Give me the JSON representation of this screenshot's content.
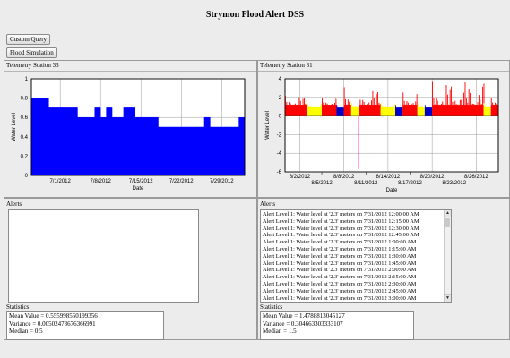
{
  "app": {
    "title": "Strymon Flood Alert DSS"
  },
  "toolbar": {
    "custom_query_label": "Custom Query",
    "flood_simulation_label": "Flood Simulation"
  },
  "left_panel": {
    "header": "Telemetry Station 33",
    "alerts_label": "Alerts",
    "alerts": [],
    "statistics_label": "Statistics",
    "statistics": [
      "Mean Value = 0.555998550199356",
      "Variance = 0.00502473676366991",
      "Median = 0.5"
    ]
  },
  "right_panel": {
    "header": "Telemetry Station 31",
    "alerts_label": "Alerts",
    "alerts": [
      "Alert Level 1: Water level at '2.3' meters on 7/31/2012 12:00:00 AM",
      "Alert Level 1: Water level at '2.3' meters on 7/31/2012 12:15:00 AM",
      "Alert Level 1: Water level at '2.3' meters on 7/31/2012 12:30:00 AM",
      "Alert Level 1: Water level at '2.3' meters on 7/31/2012 12:45:00 AM",
      "Alert Level 1: Water level at '2.3' meters on 7/31/2012 1:00:00 AM",
      "Alert Level 1: Water level at '2.3' meters on 7/31/2012 1:15:00 AM",
      "Alert Level 1: Water level at '2.3' meters on 7/31/2012 1:30:00 AM",
      "Alert Level 1: Water level at '2.3' meters on 7/31/2012 1:45:00 AM",
      "Alert Level 1: Water level at '2.3' meters on 7/31/2012 2:00:00 AM",
      "Alert Level 1: Water level at '2.3' meters on 7/31/2012 2:15:00 AM",
      "Alert Level 1: Water level at '2.3' meters on 7/31/2012 2:30:00 AM",
      "Alert Level 1: Water level at '2.3' meters on 7/31/2012 2:45:00 AM",
      "Alert Level 1: Water level at '2.3' meters on 7/31/2012 3:00:00 AM"
    ],
    "statistics_label": "Statistics",
    "statistics": [
      "Mean Value = 1.4788813045127",
      "Variance = 0.304663303333107",
      "Median = 1.5"
    ]
  },
  "chart_data": [
    {
      "type": "area",
      "xlabel": "Date",
      "ylabel": "Water Level",
      "ylim": [
        0,
        1
      ],
      "yticks": [
        "0",
        "0.2",
        "0.4",
        "0.6",
        "0.8",
        "1"
      ],
      "xticks": [
        "7/1/2012",
        "7/8/2012",
        "7/15/2012",
        "7/22/2012",
        "7/29/2012"
      ],
      "grid": true,
      "color": "#0000ff",
      "series": [
        {
          "values": [
            [
              "6/26/2012",
              0.8
            ],
            [
              "6/29/2012",
              0.8
            ],
            [
              "6/29/2012",
              0.7
            ],
            [
              "7/4/2012",
              0.7
            ],
            [
              "7/4/2012",
              0.6
            ],
            [
              "7/7/2012",
              0.6
            ],
            [
              "7/7/2012",
              0.7
            ],
            [
              "7/8/2012",
              0.7
            ],
            [
              "7/8/2012",
              0.6
            ],
            [
              "7/9/2012",
              0.6
            ],
            [
              "7/9/2012",
              0.7
            ],
            [
              "7/10/2012",
              0.7
            ],
            [
              "7/10/2012",
              0.6
            ],
            [
              "7/12/2012",
              0.6
            ],
            [
              "7/12/2012",
              0.7
            ],
            [
              "7/14/2012",
              0.7
            ],
            [
              "7/14/2012",
              0.6
            ],
            [
              "7/18/2012",
              0.6
            ],
            [
              "7/18/2012",
              0.5
            ],
            [
              "7/26/2012",
              0.5
            ],
            [
              "7/26/2012",
              0.6
            ],
            [
              "7/27/2012",
              0.6
            ],
            [
              "7/27/2012",
              0.5
            ],
            [
              "8/1/2012",
              0.5
            ],
            [
              "8/1/2012",
              0.6
            ],
            [
              "8/2/2012",
              0.6
            ]
          ]
        }
      ]
    },
    {
      "type": "bar",
      "xlabel": "Date",
      "ylabel": "Water Level",
      "ylim": [
        -6,
        4
      ],
      "yticks": [
        "-6",
        "-4",
        "-2",
        "0",
        "2",
        "4"
      ],
      "xticks_upper": [
        "8/2/2012",
        "8/8/2012",
        "8/14/2012",
        "8/20/2012",
        "8/26/2012"
      ],
      "xticks_lower": [
        "8/5/2012",
        "8/11/2012",
        "8/17/2012",
        "8/23/2012"
      ],
      "grid": true,
      "level_colors": {
        "high": "#ff0000",
        "medium": "#ffff00",
        "low": "#0000cc",
        "negative": "#ff3399"
      },
      "segments": [
        {
          "start": "7/31/2012",
          "end": "8/3/2012",
          "level": "high",
          "min": 1.2,
          "max": 2.2
        },
        {
          "start": "8/3/2012",
          "end": "8/5/2012",
          "level": "medium",
          "min": 1.0,
          "max": 1.4
        },
        {
          "start": "8/5/2012",
          "end": "8/7/2012",
          "level": "high",
          "min": 1.2,
          "max": 2.0
        },
        {
          "start": "8/7/2012",
          "end": "8/8/2012",
          "level": "low",
          "min": 0.9,
          "max": 1.2
        },
        {
          "start": "8/8/2012",
          "end": "8/9/2012",
          "level": "high",
          "min": 1.2,
          "max": 3.2
        },
        {
          "start": "8/9/2012",
          "end": "8/10/2012",
          "level": "medium",
          "min": 1.0,
          "max": 1.4
        },
        {
          "start": "8/10/2012",
          "end": "8/13/2012",
          "level": "high",
          "min": 1.2,
          "max": 3.0
        },
        {
          "start": "8/13/2012",
          "end": "8/15/2012",
          "level": "medium",
          "min": 1.0,
          "max": 1.4
        },
        {
          "start": "8/15/2012",
          "end": "8/16/2012",
          "level": "low",
          "min": 0.9,
          "max": 1.2
        },
        {
          "start": "8/16/2012",
          "end": "8/18/2012",
          "level": "high",
          "min": 1.2,
          "max": 2.6
        },
        {
          "start": "8/18/2012",
          "end": "8/19/2012",
          "level": "medium",
          "min": 1.0,
          "max": 1.4
        },
        {
          "start": "8/19/2012",
          "end": "8/20/2012",
          "level": "low",
          "min": 0.9,
          "max": 1.2
        },
        {
          "start": "8/20/2012",
          "end": "8/27/2012",
          "level": "high",
          "min": 1.2,
          "max": 3.8
        },
        {
          "start": "8/27/2012",
          "end": "8/28/2012",
          "level": "medium",
          "min": 1.0,
          "max": 1.4
        },
        {
          "start": "8/28/2012",
          "end": "8/29/2012",
          "level": "high",
          "min": 1.2,
          "max": 2.0
        }
      ],
      "spikes": [
        {
          "date": "8/10/2012",
          "value": -5.7,
          "level": "negative"
        }
      ]
    }
  ]
}
